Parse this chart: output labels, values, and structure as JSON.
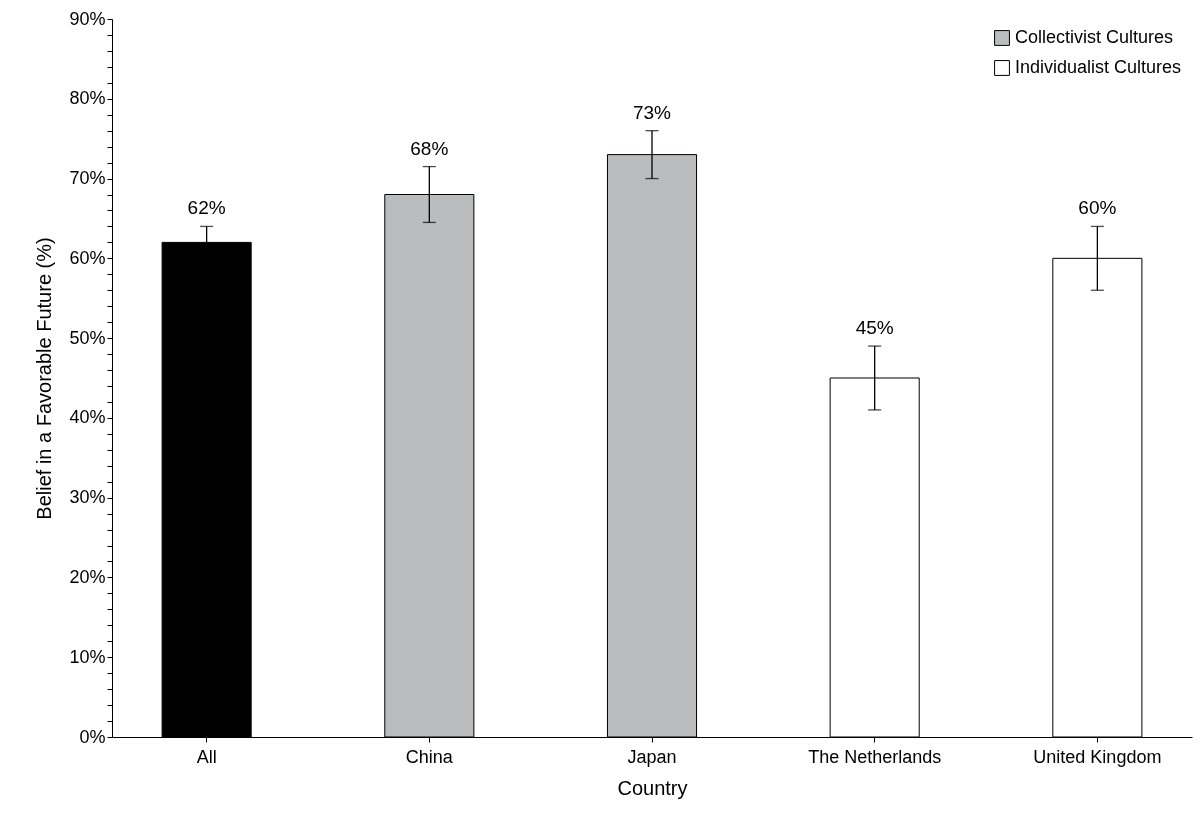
{
  "chart_data": {
    "type": "bar",
    "stacked": true,
    "xlabel": "Country",
    "ylabel": "Belief in a Favorable Future (%)",
    "categories": [
      "All",
      "China",
      "Japan",
      "The Netherlands",
      "United Kingdom"
    ],
    "series": [
      {
        "color": "#000000",
        "values": [
          62,
          null,
          null,
          null,
          null
        ],
        "errors": [
          2,
          null,
          null,
          null,
          null
        ],
        "value_labels": [
          "62%",
          null,
          null,
          null,
          null
        ]
      },
      {
        "name": "Collectivist Cultures",
        "color": "#bbbcbe",
        "values": [
          null,
          68,
          73,
          null,
          null
        ],
        "errors": [
          null,
          3.5,
          3,
          null,
          null
        ],
        "value_labels": [
          null,
          "68%",
          "73%",
          null,
          null
        ]
      },
      {
        "name": "Individualist Cultures",
        "color": "#ffffff",
        "values": [
          null,
          null,
          null,
          45,
          60
        ],
        "errors": [
          null,
          null,
          null,
          4,
          4
        ],
        "value_labels": [
          null,
          null,
          null,
          "45%",
          "60%"
        ]
      }
    ],
    "ylim": [
      0,
      90
    ],
    "yticks": [
      {
        "value": 0,
        "label": "0%"
      },
      {
        "value": 2,
        "label": null
      },
      {
        "value": 4,
        "label": null
      },
      {
        "value": 6,
        "label": null
      },
      {
        "value": 8,
        "label": null
      },
      {
        "value": 10,
        "label": "10%"
      },
      {
        "value": 12,
        "label": null
      },
      {
        "value": 14,
        "label": null
      },
      {
        "value": 16,
        "label": null
      },
      {
        "value": 18,
        "label": null
      },
      {
        "value": 20,
        "label": "20%"
      },
      {
        "value": 22,
        "label": null
      },
      {
        "value": 24,
        "label": null
      },
      {
        "value": 26,
        "label": null
      },
      {
        "value": 28,
        "label": null
      },
      {
        "value": 30,
        "label": "30%"
      },
      {
        "value": 32,
        "label": null
      },
      {
        "value": 34,
        "label": null
      },
      {
        "value": 36,
        "label": null
      },
      {
        "value": 38,
        "label": null
      },
      {
        "value": 40,
        "label": "40%"
      },
      {
        "value": 42,
        "label": null
      },
      {
        "value": 44,
        "label": null
      },
      {
        "value": 46,
        "label": null
      },
      {
        "value": 48,
        "label": null
      },
      {
        "value": 50,
        "label": "50%"
      },
      {
        "value": 52,
        "label": null
      },
      {
        "value": 54,
        "label": null
      },
      {
        "value": 56,
        "label": null
      },
      {
        "value": 58,
        "label": null
      },
      {
        "value": 60,
        "label": "60%"
      },
      {
        "value": 62,
        "label": null
      },
      {
        "value": 64,
        "label": null
      },
      {
        "value": 66,
        "label": null
      },
      {
        "value": 68,
        "label": null
      },
      {
        "value": 70,
        "label": "70%"
      },
      {
        "value": 72,
        "label": null
      },
      {
        "value": 74,
        "label": null
      },
      {
        "value": 76,
        "label": null
      },
      {
        "value": 78,
        "label": null
      },
      {
        "value": 80,
        "label": "80%"
      },
      {
        "value": 82,
        "label": null
      },
      {
        "value": 84,
        "label": null
      },
      {
        "value": 86,
        "label": null
      },
      {
        "value": 88,
        "label": null
      },
      {
        "value": 90,
        "label": "90%"
      }
    ],
    "grid": false,
    "legend": "top right"
  }
}
